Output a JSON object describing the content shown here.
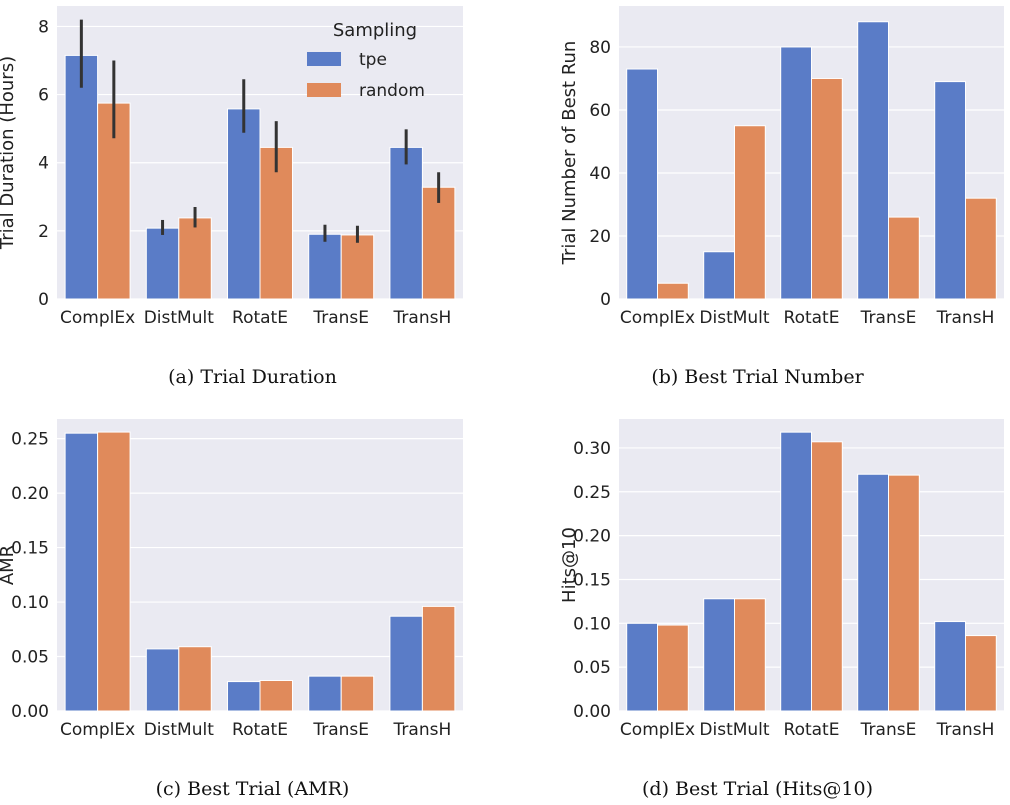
{
  "colors": {
    "tpe": "#5a7cc7",
    "random": "#e08a5b",
    "plot_bg": "#eaeaf2",
    "grid": "#ffffff",
    "error_bar": "#333333"
  },
  "chart_data": [
    {
      "id": "a",
      "type": "bar",
      "caption": "(a) Trial Duration",
      "ylabel": "Trial Duration (Hours)",
      "categories": [
        "ComplEx",
        "DistMult",
        "RotatE",
        "TransE",
        "TransH"
      ],
      "ylim": [
        0,
        8.6
      ],
      "yticks": [
        "0",
        "2",
        "4",
        "6",
        "8"
      ],
      "grid": true,
      "legend": {
        "title": "Sampling",
        "placement": "top-right",
        "entries": [
          "tpe",
          "random"
        ]
      },
      "series": [
        {
          "name": "tpe",
          "values": [
            7.15,
            2.08,
            5.58,
            1.9,
            4.45
          ],
          "err_low": [
            6.2,
            1.88,
            4.88,
            1.68,
            3.95
          ],
          "err_high": [
            8.2,
            2.32,
            6.45,
            2.18,
            4.98
          ]
        },
        {
          "name": "random",
          "values": [
            5.75,
            2.38,
            4.45,
            1.88,
            3.28
          ],
          "err_low": [
            4.72,
            2.1,
            3.72,
            1.65,
            2.82
          ],
          "err_high": [
            7.0,
            2.7,
            5.22,
            2.15,
            3.72
          ]
        }
      ]
    },
    {
      "id": "b",
      "type": "bar",
      "caption": "(b) Best Trial Number",
      "ylabel": "Trial Number of Best Run",
      "categories": [
        "ComplEx",
        "DistMult",
        "RotatE",
        "TransE",
        "TransH"
      ],
      "ylim": [
        0,
        93
      ],
      "yticks": [
        "0",
        "20",
        "40",
        "60",
        "80"
      ],
      "grid": true,
      "series": [
        {
          "name": "tpe",
          "values": [
            73,
            15,
            80,
            88,
            69
          ]
        },
        {
          "name": "random",
          "values": [
            5,
            55,
            70,
            26,
            32
          ]
        }
      ]
    },
    {
      "id": "c",
      "type": "bar",
      "caption": "(c) Best Trial (AMR)",
      "ylabel": "AMR",
      "categories": [
        "ComplEx",
        "DistMult",
        "RotatE",
        "TransE",
        "TransH"
      ],
      "ylim": [
        0,
        0.268
      ],
      "yticks": [
        "0.00",
        "0.05",
        "0.10",
        "0.15",
        "0.20",
        "0.25"
      ],
      "grid": true,
      "series": [
        {
          "name": "tpe",
          "values": [
            0.255,
            0.057,
            0.027,
            0.032,
            0.087
          ]
        },
        {
          "name": "random",
          "values": [
            0.256,
            0.059,
            0.028,
            0.032,
            0.096
          ]
        }
      ]
    },
    {
      "id": "d",
      "type": "bar",
      "caption": "(d) Best Trial (Hits@10)",
      "ylabel": "Hits@10",
      "categories": [
        "ComplEx",
        "DistMult",
        "RotatE",
        "TransE",
        "TransH"
      ],
      "ylim": [
        0,
        0.333
      ],
      "yticks": [
        "0.00",
        "0.05",
        "0.10",
        "0.15",
        "0.20",
        "0.25",
        "0.30"
      ],
      "grid": true,
      "series": [
        {
          "name": "tpe",
          "values": [
            0.1,
            0.128,
            0.318,
            0.27,
            0.102
          ]
        },
        {
          "name": "random",
          "values": [
            0.098,
            0.128,
            0.307,
            0.269,
            0.086
          ]
        }
      ]
    }
  ]
}
